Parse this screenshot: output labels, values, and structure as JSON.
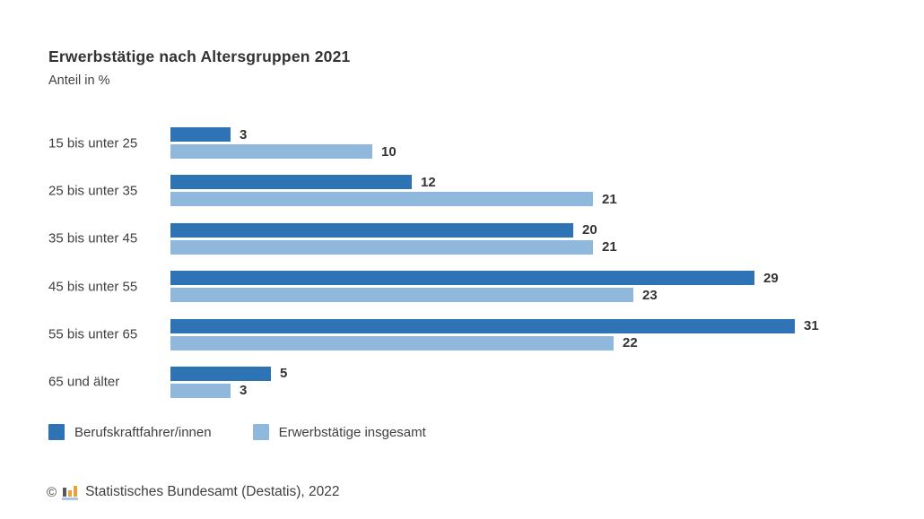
{
  "chart_data": {
    "type": "bar",
    "orientation": "horizontal",
    "title": "Erwerbstätige nach Altersgruppen 2021",
    "subtitle": "Anteil in %",
    "unit": "%",
    "categories": [
      "15 bis unter 25",
      "25 bis unter 35",
      "35 bis unter 45",
      "45 bis unter 55",
      "55 bis unter 65",
      "65 und älter"
    ],
    "series": [
      {
        "name": "Berufskraftfahrer/innen",
        "color": "#2E74B5",
        "values": [
          3,
          12,
          20,
          29,
          31,
          5
        ]
      },
      {
        "name": "Erwerbstätige insgesamt",
        "color": "#8FB8DC",
        "values": [
          10,
          21,
          21,
          23,
          22,
          3
        ]
      }
    ],
    "xlim": [
      0,
      35
    ],
    "grid": false,
    "value_labels": true,
    "legend_position": "bottom"
  },
  "footer": {
    "copyright": "©",
    "logo_icon": "destatis-bar-chart-icon",
    "source": "Statistisches Bundesamt (Destatis), 2022"
  },
  "colors": {
    "background": "#ffffff",
    "series_dark": "#2E74B5",
    "series_light": "#8FB8DC",
    "text": "#3f3f3f",
    "value_label": "#333333",
    "logo_orange": "#E9A13B",
    "logo_gray": "#58585A",
    "logo_blue": "#A9C7E2"
  }
}
